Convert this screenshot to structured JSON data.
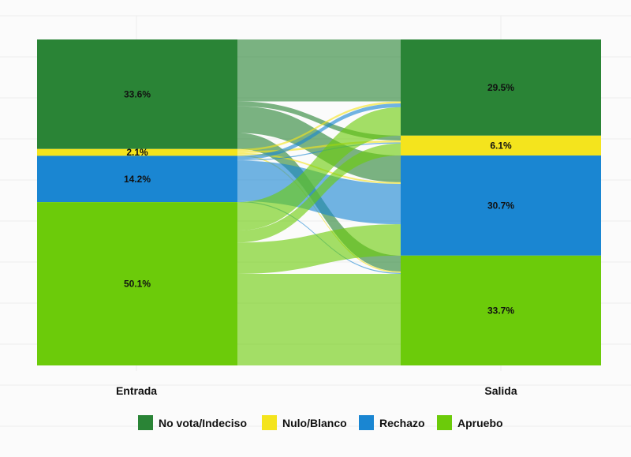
{
  "chart_data": {
    "type": "alluvial",
    "title": "",
    "xlabel": "",
    "ylabel": "",
    "grid": true,
    "legend_position": "bottom",
    "stages": [
      "Entrada",
      "Salida"
    ],
    "categories": [
      {
        "key": "novota",
        "name": "No vota/Indeciso",
        "color": "#2a8436"
      },
      {
        "key": "nulo",
        "name": "Nulo/Blanco",
        "color": "#f4e41d"
      },
      {
        "key": "rechazo",
        "name": "Rechazo",
        "color": "#1a86d2"
      },
      {
        "key": "apruebo",
        "name": "Apruebo",
        "color": "#6ccb0a"
      }
    ],
    "entrada": [
      {
        "key": "novota",
        "value": 33.6,
        "label": "33.6%"
      },
      {
        "key": "nulo",
        "value": 2.1,
        "label": "2.1%"
      },
      {
        "key": "rechazo",
        "value": 14.2,
        "label": "14.2%"
      },
      {
        "key": "apruebo",
        "value": 50.1,
        "label": "50.1%"
      }
    ],
    "salida": [
      {
        "key": "novota",
        "value": 29.5,
        "label": "29.5%"
      },
      {
        "key": "nulo",
        "value": 6.1,
        "label": "6.1%"
      },
      {
        "key": "rechazo",
        "value": 30.7,
        "label": "30.7%"
      },
      {
        "key": "apruebo",
        "value": 33.7,
        "label": "33.7%"
      }
    ],
    "flows": [
      {
        "from": "novota",
        "to": "novota",
        "value": 19.0
      },
      {
        "from": "novota",
        "to": "nulo",
        "value": 1.5
      },
      {
        "from": "novota",
        "to": "rechazo",
        "value": 8.2
      },
      {
        "from": "novota",
        "to": "apruebo",
        "value": 4.9
      },
      {
        "from": "nulo",
        "to": "novota",
        "value": 0.6
      },
      {
        "from": "nulo",
        "to": "nulo",
        "value": 0.6
      },
      {
        "from": "nulo",
        "to": "rechazo",
        "value": 0.5
      },
      {
        "from": "nulo",
        "to": "apruebo",
        "value": 0.4
      },
      {
        "from": "rechazo",
        "to": "novota",
        "value": 1.2
      },
      {
        "from": "rechazo",
        "to": "nulo",
        "value": 0.3
      },
      {
        "from": "rechazo",
        "to": "rechazo",
        "value": 12.4
      },
      {
        "from": "rechazo",
        "to": "apruebo",
        "value": 0.3
      },
      {
        "from": "apruebo",
        "to": "novota",
        "value": 8.7
      },
      {
        "from": "apruebo",
        "to": "nulo",
        "value": 3.7
      },
      {
        "from": "apruebo",
        "to": "rechazo",
        "value": 9.6
      },
      {
        "from": "apruebo",
        "to": "apruebo",
        "value": 28.1
      }
    ]
  }
}
